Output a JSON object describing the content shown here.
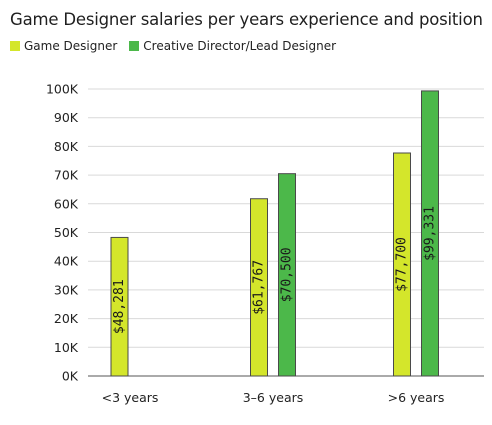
{
  "chart_data": {
    "type": "bar",
    "title": "Game Designer salaries per years experience and position",
    "categories": [
      "<3 years",
      "3–6 years",
      ">6 years"
    ],
    "series": [
      {
        "name": "Game Designer",
        "color": "#d4e62b",
        "values": [
          48281,
          61767,
          77700
        ],
        "labels": [
          "$48,281",
          "$61,767",
          "$77,700"
        ]
      },
      {
        "name": "Creative Director/Lead Designer",
        "color": "#4cb84a",
        "values": [
          null,
          70500,
          99331
        ],
        "labels": [
          "",
          "$70,500",
          "$99,331"
        ]
      }
    ],
    "yticks": [
      "0K",
      "10K",
      "20K",
      "30K",
      "40K",
      "50K",
      "60K",
      "70K",
      "80K",
      "90K",
      "100K"
    ],
    "ylim": [
      0,
      100000
    ],
    "grid": true,
    "legend_position": "top-left"
  }
}
